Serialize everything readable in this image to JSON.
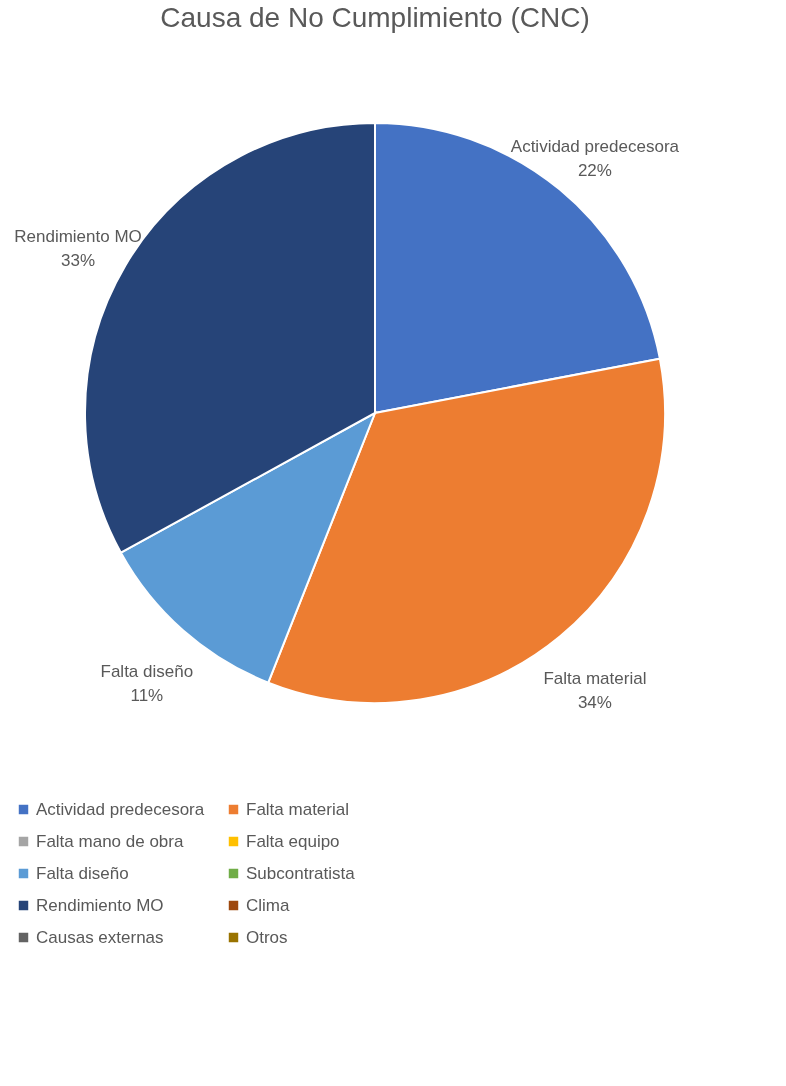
{
  "chart_data": {
    "type": "pie",
    "title": "Causa de No Cumplimiento (CNC)",
    "categories": [
      "Actividad predecesora",
      "Falta material",
      "Falta mano de obra",
      "Falta equipo",
      "Falta diseño",
      "Subcontratista",
      "Rendimiento MO",
      "Clima",
      "Causas externas",
      "Otros"
    ],
    "values": [
      22,
      34,
      0,
      0,
      11,
      0,
      33,
      0,
      0,
      0
    ],
    "colors": [
      "#4472c4",
      "#ed7d31",
      "#a5a5a5",
      "#ffc000",
      "#5b9bd5",
      "#70ad47",
      "#264478",
      "#9e480e",
      "#636363",
      "#997300"
    ],
    "value_labels": [
      "22%",
      "34%",
      null,
      null,
      "11%",
      null,
      "33%",
      null,
      null,
      null
    ],
    "legend": "bottom"
  }
}
